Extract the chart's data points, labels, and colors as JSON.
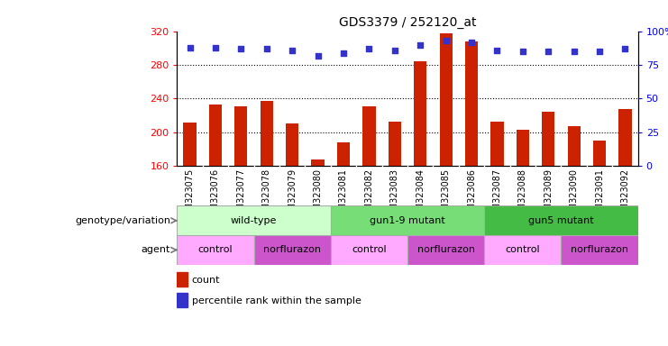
{
  "title": "GDS3379 / 252120_at",
  "samples": [
    "GSM323075",
    "GSM323076",
    "GSM323077",
    "GSM323078",
    "GSM323079",
    "GSM323080",
    "GSM323081",
    "GSM323082",
    "GSM323083",
    "GSM323084",
    "GSM323085",
    "GSM323086",
    "GSM323087",
    "GSM323088",
    "GSM323089",
    "GSM323090",
    "GSM323091",
    "GSM323092"
  ],
  "counts": [
    212,
    233,
    231,
    237,
    211,
    168,
    188,
    231,
    213,
    284,
    317,
    308,
    213,
    203,
    224,
    207,
    190,
    228
  ],
  "percentile_ranks": [
    88,
    88,
    87,
    87,
    86,
    82,
    84,
    87,
    86,
    90,
    93,
    92,
    86,
    85,
    85,
    85,
    85,
    87
  ],
  "ylim_left": [
    160,
    320
  ],
  "ylim_right": [
    0,
    100
  ],
  "yticks_left": [
    160,
    200,
    240,
    280,
    320
  ],
  "yticks_right": [
    0,
    25,
    50,
    75,
    100
  ],
  "bar_color": "#cc2200",
  "dot_color": "#3333cc",
  "genotype_groups": [
    {
      "label": "wild-type",
      "start": 0,
      "end": 6,
      "color": "#ccffcc"
    },
    {
      "label": "gun1-9 mutant",
      "start": 6,
      "end": 12,
      "color": "#77dd77"
    },
    {
      "label": "gun5 mutant",
      "start": 12,
      "end": 18,
      "color": "#44bb44"
    }
  ],
  "agent_groups": [
    {
      "label": "control",
      "start": 0,
      "end": 3,
      "color": "#ffaaff"
    },
    {
      "label": "norflurazon",
      "start": 3,
      "end": 6,
      "color": "#cc55cc"
    },
    {
      "label": "control",
      "start": 6,
      "end": 9,
      "color": "#ffaaff"
    },
    {
      "label": "norflurazon",
      "start": 9,
      "end": 12,
      "color": "#cc55cc"
    },
    {
      "label": "control",
      "start": 12,
      "end": 15,
      "color": "#ffaaff"
    },
    {
      "label": "norflurazon",
      "start": 15,
      "end": 18,
      "color": "#cc55cc"
    }
  ],
  "background_color": "#ffffff",
  "tick_label_fontsize": 7,
  "title_fontsize": 10,
  "bar_width": 0.5,
  "dot_size": 20
}
